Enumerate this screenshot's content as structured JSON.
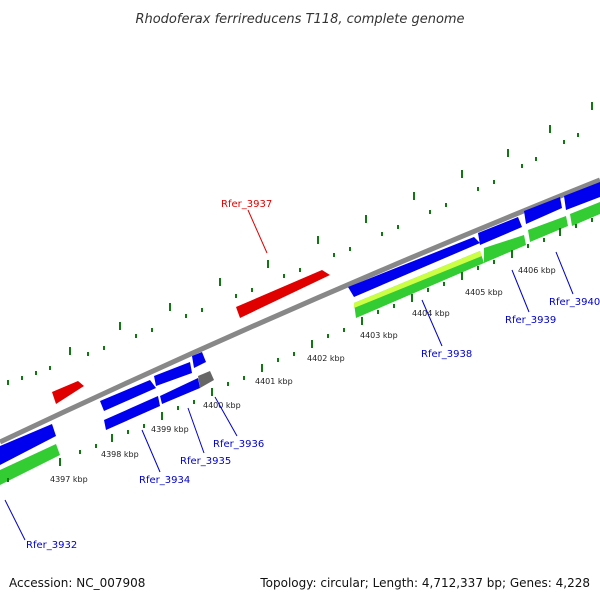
{
  "title": "Rhodoferax ferrireducens T118, complete genome",
  "footer": {
    "accession": "Accession: NC_007908",
    "summary": "Topology: circular; Length: 4,712,337 bp; Genes: 4,228"
  },
  "ticks": [
    "4397 kbp",
    "4398 kbp",
    "4399 kbp",
    "4400 kbp",
    "4401 kbp",
    "4402 kbp",
    "4403 kbp",
    "4404 kbp",
    "4405 kbp",
    "4406 kbp"
  ],
  "genes": {
    "rfer_3937": {
      "label": "Rfer_3937",
      "color": "#e00000"
    },
    "rfer_3938": {
      "label": "Rfer_3938",
      "color": "#0000cc"
    },
    "rfer_3939": {
      "label": "Rfer_3939",
      "color": "#0000cc"
    },
    "rfer_3940": {
      "label": "Rfer_3940",
      "color": "#0000cc"
    },
    "rfer_3936": {
      "label": "Rfer_3936",
      "color": "#0000cc"
    },
    "rfer_3935": {
      "label": "Rfer_3935",
      "color": "#0000cc"
    },
    "rfer_3934": {
      "label": "Rfer_3934",
      "color": "#0000cc"
    },
    "rfer_3932": {
      "label": "Rfer_3932",
      "color": "#0000cc"
    }
  },
  "colors": {
    "backbone": "#888888",
    "cds_forward": "#e00000",
    "cds_reverse": "#0000ff",
    "gene_bar": "#33cc33",
    "gene_bar_highlight": "#ccff44",
    "gap": "#666666",
    "tick": "#117711"
  }
}
